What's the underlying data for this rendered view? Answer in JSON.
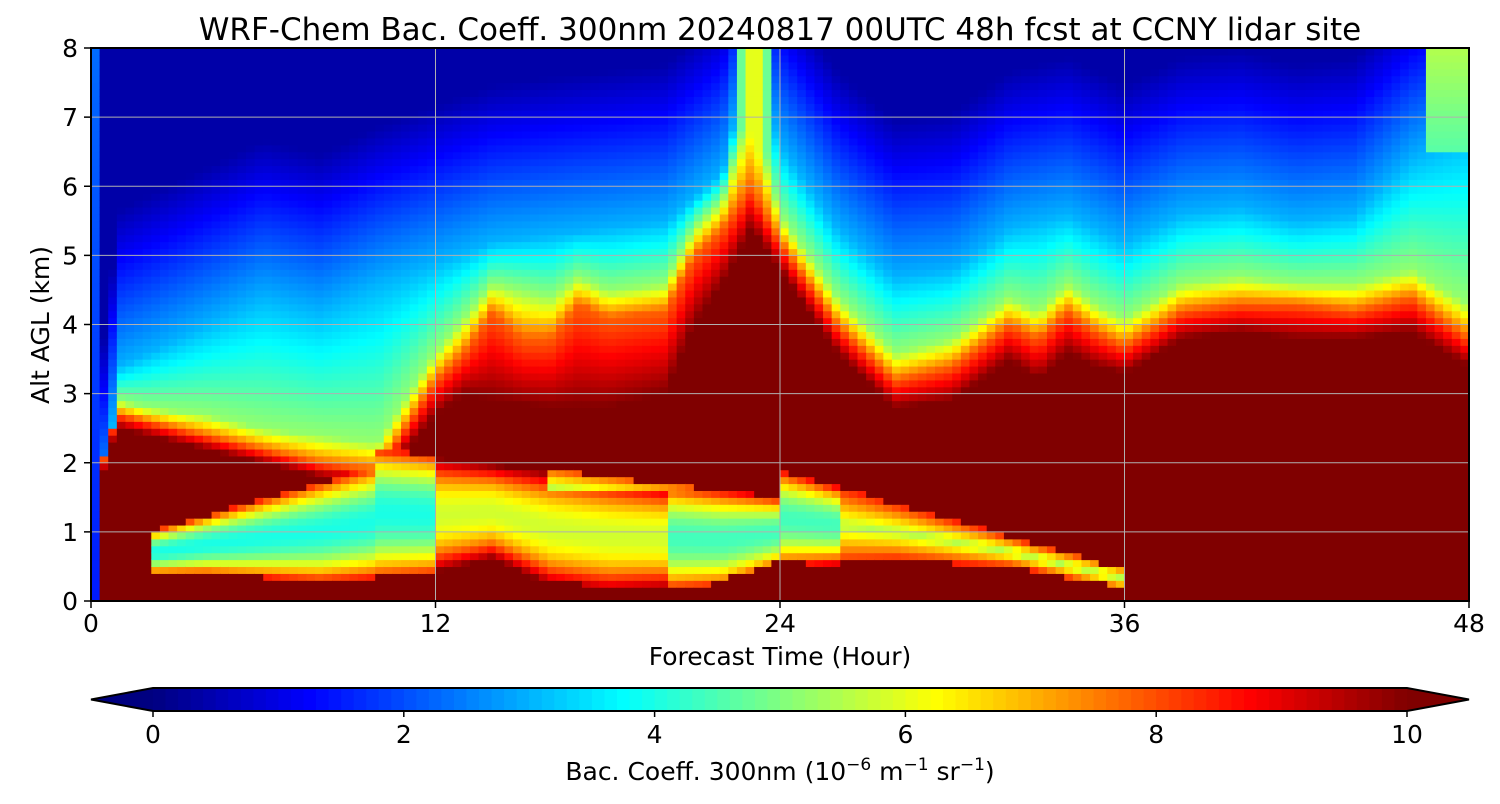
{
  "chart_data": {
    "type": "heatmap",
    "subtype": "filled-contour time-height cross-section",
    "title": "WRF-Chem Bac. Coeff. 300nm  20240817 00UTC 48h fcst at CCNY lidar site",
    "xlabel": "Forecast Time (Hour)",
    "ylabel": "Alt AGL (km)",
    "xlim": [
      0,
      48
    ],
    "ylim": [
      0,
      8
    ],
    "xticks": [
      0,
      12,
      24,
      36,
      48
    ],
    "yticks": [
      0,
      1,
      2,
      3,
      4,
      5,
      6,
      7,
      8
    ],
    "grid": true,
    "colormap": "jet",
    "colorbar": {
      "orientation": "horizontal",
      "position": "bottom",
      "range": [
        0,
        10
      ],
      "ticks": [
        0,
        2,
        4,
        6,
        8,
        10
      ],
      "extend": "both",
      "label_main": "Bac. Coeff. 300nm  (10",
      "label_exp1": "−6",
      "label_mid1": " m",
      "label_exp2": "−1",
      "label_mid2": " sr",
      "label_exp3": "−1",
      "label_end": ")"
    },
    "x": [
      0,
      0.5,
      1,
      2,
      3,
      4,
      6,
      8,
      10,
      12,
      13,
      14,
      15,
      16,
      17,
      18,
      20,
      21,
      22,
      23,
      24,
      26,
      28,
      30,
      32,
      33,
      34,
      35,
      36,
      38,
      40,
      42,
      44,
      46,
      47,
      48
    ],
    "y": [
      0,
      0.25,
      0.5,
      0.75,
      1,
      1.25,
      1.5,
      1.75,
      2,
      2.25,
      2.5,
      2.75,
      3,
      3.25,
      3.5,
      3.75,
      4,
      4.25,
      4.5,
      4.75,
      5,
      5.25,
      5.5,
      5.75,
      6,
      6.5,
      7,
      7.5,
      8
    ],
    "boundaries": {
      "dark_red_top": [
        [
          0,
          0.0
        ],
        [
          0.5,
          2.1
        ],
        [
          1,
          2.5
        ],
        [
          2,
          2.4
        ],
        [
          4,
          2.2
        ],
        [
          6,
          2.0
        ],
        [
          8,
          1.8
        ],
        [
          10,
          1.7
        ],
        [
          12,
          2.7
        ],
        [
          13,
          3.0
        ],
        [
          14,
          2.9
        ],
        [
          16,
          2.8
        ],
        [
          18,
          2.8
        ],
        [
          20,
          3.0
        ],
        [
          21,
          4.0
        ],
        [
          22,
          4.6
        ],
        [
          23,
          5.4
        ],
        [
          24,
          4.8
        ],
        [
          26,
          3.6
        ],
        [
          28,
          2.8
        ],
        [
          30,
          2.9
        ],
        [
          32,
          3.5
        ],
        [
          33,
          3.2
        ],
        [
          34,
          3.6
        ],
        [
          35,
          3.4
        ],
        [
          36,
          3.3
        ],
        [
          38,
          3.8
        ],
        [
          40,
          3.9
        ],
        [
          42,
          3.8
        ],
        [
          44,
          3.8
        ],
        [
          46,
          3.9
        ],
        [
          48,
          3.4
        ]
      ],
      "red_band_top": [
        [
          0,
          0.0
        ],
        [
          0.5,
          2.3
        ],
        [
          1,
          2.7
        ],
        [
          2,
          2.6
        ],
        [
          4,
          2.4
        ],
        [
          6,
          2.2
        ],
        [
          8,
          2.0
        ],
        [
          10,
          1.9
        ],
        [
          12,
          3.2
        ],
        [
          13,
          3.6
        ],
        [
          14,
          4.2
        ],
        [
          15,
          3.8
        ],
        [
          16,
          3.8
        ],
        [
          17,
          4.3
        ],
        [
          18,
          4.1
        ],
        [
          20,
          4.2
        ],
        [
          21,
          5.0
        ],
        [
          22,
          5.4
        ],
        [
          23,
          6.0
        ],
        [
          24,
          5.2
        ],
        [
          26,
          4.0
        ],
        [
          28,
          3.2
        ],
        [
          30,
          3.4
        ],
        [
          32,
          4.0
        ],
        [
          33,
          3.8
        ],
        [
          34,
          4.2
        ],
        [
          35,
          3.9
        ],
        [
          36,
          3.7
        ],
        [
          38,
          4.2
        ],
        [
          40,
          4.3
        ],
        [
          42,
          4.3
        ],
        [
          44,
          4.2
        ],
        [
          46,
          4.4
        ],
        [
          48,
          3.8
        ]
      ],
      "yellow_top": [
        [
          0,
          0.0
        ],
        [
          1,
          2.9
        ],
        [
          2,
          2.8
        ],
        [
          4,
          2.7
        ],
        [
          6,
          2.5
        ],
        [
          8,
          2.4
        ],
        [
          10,
          2.3
        ],
        [
          12,
          3.6
        ],
        [
          13,
          4.1
        ],
        [
          14,
          4.6
        ],
        [
          16,
          4.4
        ],
        [
          17,
          4.7
        ],
        [
          18,
          4.5
        ],
        [
          20,
          4.6
        ],
        [
          21,
          5.4
        ],
        [
          22,
          5.8
        ],
        [
          23,
          7.2
        ],
        [
          24,
          5.6
        ],
        [
          26,
          4.4
        ],
        [
          28,
          3.6
        ],
        [
          30,
          3.8
        ],
        [
          32,
          4.4
        ],
        [
          33,
          4.2
        ],
        [
          34,
          4.6
        ],
        [
          35,
          4.3
        ],
        [
          36,
          4.1
        ],
        [
          38,
          4.6
        ],
        [
          40,
          4.7
        ],
        [
          42,
          4.6
        ],
        [
          44,
          4.6
        ],
        [
          46,
          4.8
        ],
        [
          48,
          4.3
        ]
      ],
      "cyan_top": [
        [
          0,
          0.0
        ],
        [
          1,
          3.4
        ],
        [
          2,
          3.6
        ],
        [
          4,
          4.0
        ],
        [
          6,
          4.4
        ],
        [
          8,
          4.2
        ],
        [
          10,
          4.6
        ],
        [
          12,
          4.9
        ],
        [
          14,
          5.2
        ],
        [
          16,
          5.3
        ],
        [
          18,
          5.4
        ],
        [
          20,
          5.5
        ],
        [
          22,
          6.2
        ],
        [
          23,
          8.0
        ],
        [
          24,
          6.6
        ],
        [
          26,
          5.4
        ],
        [
          28,
          4.7
        ],
        [
          30,
          4.8
        ],
        [
          32,
          5.4
        ],
        [
          34,
          5.6
        ],
        [
          36,
          5.2
        ],
        [
          38,
          5.6
        ],
        [
          40,
          5.7
        ],
        [
          42,
          5.5
        ],
        [
          44,
          5.6
        ],
        [
          46,
          6.4
        ],
        [
          48,
          6.8
        ]
      ],
      "bottom_red_layer_top": [
        [
          0,
          0.0
        ],
        [
          1,
          0.4
        ],
        [
          4,
          0.4
        ],
        [
          8,
          0.3
        ],
        [
          12,
          0.4
        ],
        [
          14,
          0.6
        ],
        [
          16,
          0.2
        ],
        [
          18,
          0.1
        ],
        [
          22,
          0.2
        ],
        [
          24,
          0.5
        ],
        [
          28,
          0.6
        ],
        [
          32,
          0.5
        ],
        [
          36,
          0.2
        ],
        [
          40,
          0.1
        ],
        [
          48,
          0.1
        ]
      ],
      "green_plume_low": [
        [
          2,
          1.2
        ],
        [
          4,
          1.0
        ],
        [
          8,
          0.6
        ],
        [
          12,
          0.6
        ],
        [
          14,
          0.9
        ],
        [
          16,
          1.2
        ],
        [
          18,
          1.1
        ],
        [
          20,
          1.0
        ],
        [
          22,
          1.2
        ],
        [
          24,
          1.5
        ],
        [
          26,
          1.4
        ],
        [
          28,
          1.2
        ],
        [
          30,
          1.0
        ],
        [
          32,
          0.8
        ],
        [
          34,
          0.5
        ],
        [
          36,
          0.3
        ]
      ]
    },
    "values_estimated": {
      "surface_layer_0_to_2km_hours_0_to_10": 10,
      "mid_plume_0.5_to_1.5km_hours_4_to_12": 4.2,
      "cloud_free_upper_troposphere_5_to_8km": 1.0,
      "deep_layer_2_to_4km_hours_24_to_48": 10,
      "spike_near_hour_23_to_8km": 7.0
    }
  }
}
